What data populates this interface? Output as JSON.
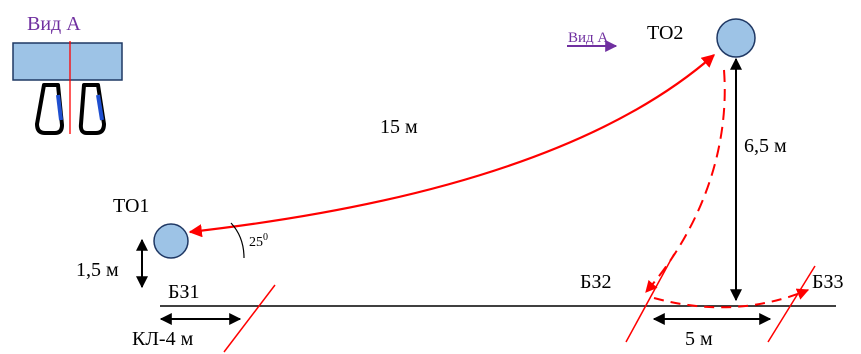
{
  "view_a_title": "Вид А",
  "view_a_arrow_label": "Вид А",
  "to1": "ТО1",
  "to2": "ТО2",
  "bz1": "БЗ1",
  "bz2": "БЗ2",
  "bz3": "БЗ3",
  "dist_15": "15 м",
  "dist_6_5": "6,5 м",
  "dist_1_5": "1,5 м",
  "dist_kl4": "КЛ-4 м",
  "dist_5": "5 м",
  "angle_base": "25",
  "angle_sup": "0",
  "colors": {
    "purple": "#7030a0",
    "red": "#ff0000",
    "circle_fill": "#9dc3e6",
    "circle_stroke": "#1f3864",
    "hook_blue": "#1f4fd0"
  }
}
